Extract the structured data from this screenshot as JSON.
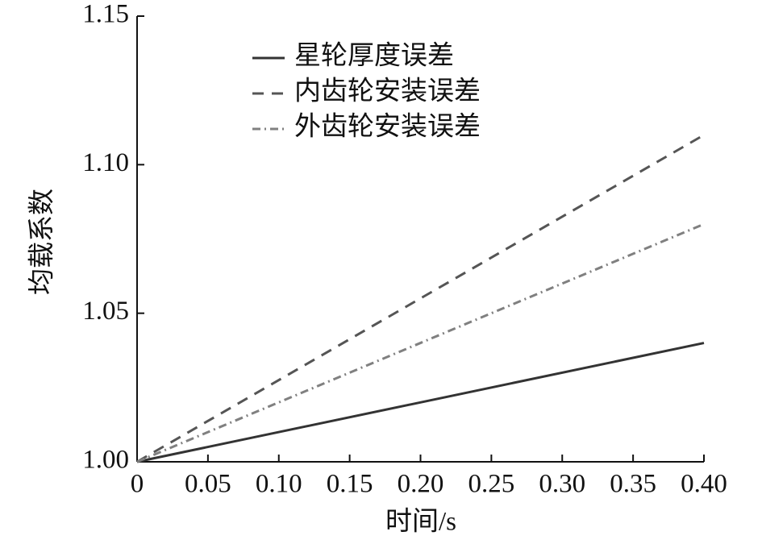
{
  "chart_data": {
    "type": "line",
    "x_label": "时间/s",
    "y_label": "均载系数",
    "x": [
      0,
      0.4
    ],
    "series": [
      {
        "name": "星轮厚度误差",
        "color": "#333333",
        "dash": "solid",
        "values": [
          1.0,
          1.04
        ]
      },
      {
        "name": "内齿轮安装误差",
        "color": "#555555",
        "dash": "dashed",
        "values": [
          1.0,
          1.11
        ]
      },
      {
        "name": "外齿轮安装误差",
        "color": "#808080",
        "dash": "dashdot",
        "values": [
          1.0,
          1.08
        ]
      }
    ],
    "xlim": [
      0,
      0.4
    ],
    "xticks": [
      0,
      0.05,
      {
        "value": 0.1,
        "label": "0.10"
      },
      0.15,
      {
        "value": 0.2,
        "label": "0.20"
      },
      0.25,
      {
        "value": 0.3,
        "label": "0.30"
      },
      0.35,
      {
        "value": 0.4,
        "label": "0.40"
      }
    ],
    "ylim": [
      1.0,
      1.15
    ],
    "yticks": [
      {
        "value": 1.0,
        "label": "1.00"
      },
      1.05,
      {
        "value": 1.1,
        "label": "1.10"
      },
      1.15
    ],
    "legend": "upper-left",
    "grid": false
  }
}
